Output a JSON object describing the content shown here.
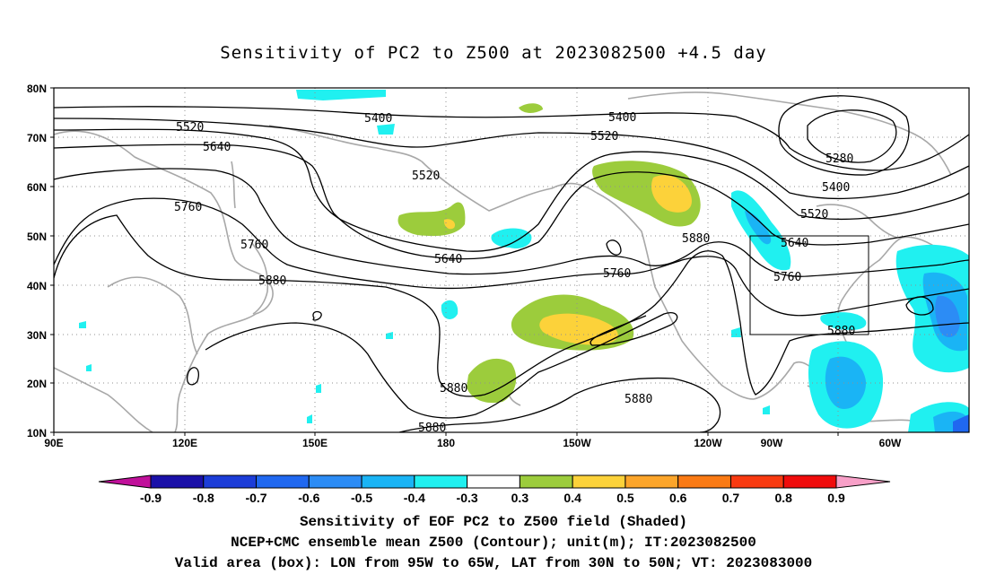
{
  "title": "Sensitivity of PC2 to Z500 at 2023082500 +4.5 day",
  "map": {
    "lon_range": [
      "90E",
      "50W"
    ],
    "lat_range": [
      "10N",
      "80N"
    ],
    "lat_labels": [
      "80N",
      "70N",
      "60N",
      "50N",
      "40N",
      "30N",
      "20N",
      "10N"
    ],
    "lon_labels": [
      "90E",
      "120E",
      "150E",
      "180",
      "150W",
      "120W",
      "90W",
      "60W"
    ],
    "grid": "dotted",
    "land_outline_color": "#a8a8a8",
    "valid_box": {
      "lon_from": "95W",
      "lon_to": "65W",
      "lat_from": "30N",
      "lat_to": "50N"
    }
  },
  "contour_labels": [
    "5520",
    "5640",
    "5760",
    "5760",
    "5880",
    "5400",
    "5520",
    "5640",
    "5400",
    "5520",
    "5760",
    "5880",
    "5880",
    "5880",
    "5880",
    "5280",
    "5400",
    "5520",
    "5640",
    "5760",
    "5880"
  ],
  "colorbar": {
    "labels": [
      "-0.9",
      "-0.8",
      "-0.7",
      "-0.6",
      "-0.5",
      "-0.4",
      "-0.3",
      "0.3",
      "0.4",
      "0.5",
      "0.6",
      "0.7",
      "0.8",
      "0.9"
    ],
    "colors": [
      "#1a10a8",
      "#1c3dd8",
      "#2068f0",
      "#2c8cf5",
      "#1ab4f5",
      "#20f0f0",
      "#ffffff",
      "#9ccc3c",
      "#fcd23a",
      "#fca52a",
      "#fa7a14",
      "#f83a10",
      "#f00c0c"
    ],
    "end_low_color": "#c0109a",
    "end_high_color": "#f8a0c8"
  },
  "footer": {
    "line1": "Sensitivity of EOF PC2 to Z500 field (Shaded)",
    "line2": "NCEP+CMC ensemble mean Z500 (Contour); unit(m); IT:2023082500",
    "line3": "Valid area (box): LON from 95W to 65W, LAT from 30N to 50N; VT: 2023083000"
  }
}
